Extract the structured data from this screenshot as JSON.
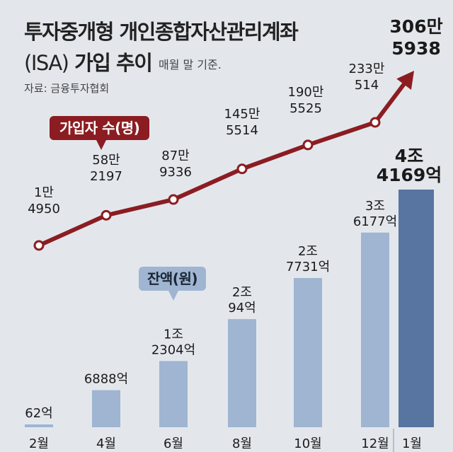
{
  "title_line1": "투자중개형 개인종합자산관리계좌",
  "title_line2_prefix": "(ISA)",
  "title_line2_main": " 가입 추이",
  "basis_note": "매월 말 기준.",
  "source": "자료: 금융투자협회",
  "colors": {
    "line": "#8b1d22",
    "bar": "#9fb5d1",
    "bar_highlight": "#5874a0",
    "background": "#e3e7ec"
  },
  "chart_data": {
    "type": "bar",
    "categories": [
      "2월",
      "4월",
      "6월",
      "8월",
      "10월",
      "12월",
      "1월"
    ],
    "series": [
      {
        "name": "가입자 수(명)",
        "type": "line",
        "values": [
          14950,
          582197,
          879336,
          1455514,
          1905525,
          2330514,
          3065938
        ],
        "labels": [
          [
            "1만",
            "4950"
          ],
          [
            "58만",
            "2197"
          ],
          [
            "87만",
            "9336"
          ],
          [
            "145만",
            "5514"
          ],
          [
            "190만",
            "5525"
          ],
          [
            "233만",
            "514"
          ],
          [
            "306만",
            "5938"
          ]
        ]
      },
      {
        "name": "잔액(원)",
        "type": "bar",
        "values": [
          62,
          6888,
          12304,
          20094,
          27731,
          36177,
          44169
        ],
        "unit": "억",
        "labels": [
          [
            "62억"
          ],
          [
            "6888억"
          ],
          [
            "1조",
            "2304억"
          ],
          [
            "2조",
            "94억"
          ],
          [
            "2조",
            "7731억"
          ],
          [
            "3조",
            "6177억"
          ],
          [
            "4조",
            "4169억"
          ]
        ]
      }
    ],
    "highlight_index": 6
  }
}
